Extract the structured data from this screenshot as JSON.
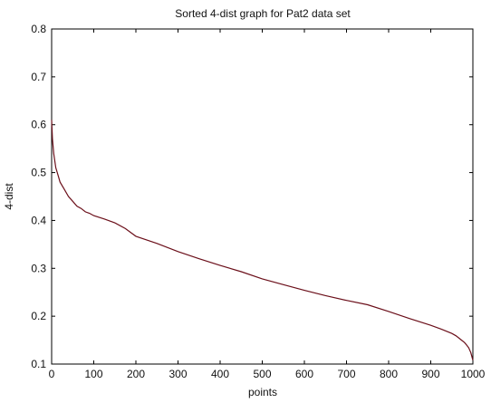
{
  "chart_data": {
    "type": "line",
    "title": "Sorted 4-dist graph for Pat2 data set",
    "xlabel": "points",
    "ylabel": "4-dist",
    "xlim": [
      0,
      1000
    ],
    "ylim": [
      0.1,
      0.8
    ],
    "xticks": [
      0,
      100,
      200,
      300,
      400,
      500,
      600,
      700,
      800,
      900,
      1000
    ],
    "yticks": [
      0.1,
      0.2,
      0.3,
      0.4,
      0.5,
      0.6,
      0.7,
      0.8
    ],
    "grid": false,
    "line_color": "#6b0f1a",
    "series": [
      {
        "x": [
          0,
          2,
          5,
          10,
          15,
          20,
          30,
          40,
          50,
          60,
          70,
          80,
          90,
          100,
          125,
          150,
          175,
          200,
          250,
          300,
          350,
          400,
          450,
          500,
          550,
          600,
          650,
          700,
          750,
          800,
          850,
          900,
          925,
          950,
          960,
          970,
          980,
          985,
          990,
          995,
          1000
        ],
        "y": [
          0.61,
          0.57,
          0.54,
          0.51,
          0.495,
          0.48,
          0.465,
          0.45,
          0.44,
          0.43,
          0.425,
          0.418,
          0.415,
          0.41,
          0.403,
          0.395,
          0.383,
          0.367,
          0.352,
          0.335,
          0.32,
          0.306,
          0.293,
          0.278,
          0.266,
          0.254,
          0.243,
          0.233,
          0.224,
          0.21,
          0.195,
          0.181,
          0.173,
          0.164,
          0.159,
          0.152,
          0.145,
          0.14,
          0.134,
          0.124,
          0.108
        ]
      }
    ]
  }
}
